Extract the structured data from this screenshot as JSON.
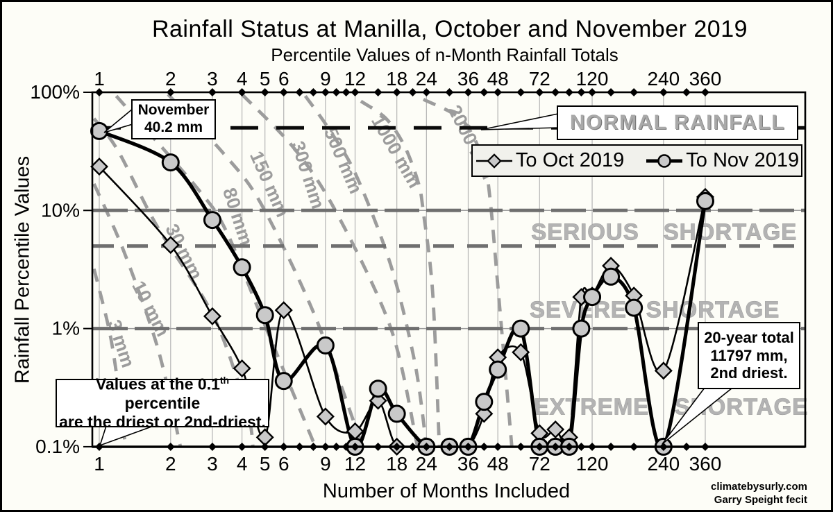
{
  "title": "Rainfall Status at Manilla, October and November 2019",
  "subtitle": "Percentile Values of n-Month Rainfall Totals",
  "x_axis_label": "Number of Months Included",
  "y_axis_label": "Rainfall Percentile Values",
  "credits": {
    "site": "climatebysurly.com",
    "author": "Garry Speight fecit"
  },
  "legend": {
    "items": [
      {
        "label": "To Oct 2019",
        "marker": "diamond"
      },
      {
        "label": "To Nov 2019",
        "marker": "circle"
      }
    ]
  },
  "callouts": {
    "november": {
      "line1": "November",
      "line2": "40.2 mm"
    },
    "normal": {
      "label": "NORMAL RAINFALL"
    },
    "values_note": {
      "prefix": "Values at the 0.1",
      "sup": "th",
      "suffix": " percentile",
      "line2": "are the driest or 2nd-driest."
    },
    "twenty_year": {
      "line1": "20-year total",
      "line2": "11797 mm,",
      "line3": "2nd driest."
    }
  },
  "zones": [
    {
      "id": "serious",
      "words": [
        "SERIOUS",
        "SHORTAGE"
      ]
    },
    {
      "id": "severe",
      "words": [
        "SEVERE",
        "SHORTAGE"
      ]
    },
    {
      "id": "extreme",
      "words": [
        "EXTREME",
        "SHORTAGE"
      ]
    }
  ],
  "colors": {
    "background": "#fdfdf7",
    "series": "#000000",
    "marker_fill": "#c9c9c9",
    "isohyet": "#9c9c9c",
    "zone_text": "#b3b3b3",
    "grid": "#b4b4b4",
    "reference_gray": "#6f6f6f"
  },
  "chart_data": {
    "type": "line",
    "title": "Rainfall Status at Manilla, October and November 2019",
    "xlabel": "Number of Months Included",
    "ylabel": "Rainfall Percentile Values",
    "x_scale": "log",
    "y_scale": "log",
    "xlim": [
      1,
      360
    ],
    "ylim": [
      0.1,
      100
    ],
    "x_tick_labels": [
      1,
      2,
      3,
      4,
      5,
      6,
      9,
      12,
      18,
      24,
      36,
      48,
      72,
      120,
      240,
      360
    ],
    "x_minor_ticks": [
      1,
      2,
      3,
      4,
      5,
      6,
      7,
      8,
      9,
      10,
      11,
      12,
      15,
      18,
      21,
      24,
      30,
      36,
      42,
      48,
      60,
      72,
      84,
      96,
      108,
      120,
      144,
      180,
      240,
      300,
      360
    ],
    "y_ticks": [
      {
        "label": "100%",
        "value": 100
      },
      {
        "label": "10%",
        "value": 10
      },
      {
        "label": "1%",
        "value": 1
      },
      {
        "label": "0.1%",
        "value": 0.1
      }
    ],
    "x": [
      1,
      2,
      3,
      4,
      5,
      6,
      9,
      12,
      15,
      18,
      24,
      30,
      36,
      42,
      48,
      60,
      72,
      84,
      96,
      108,
      120,
      144,
      180,
      240,
      360
    ],
    "series": [
      {
        "name": "To Oct 2019",
        "marker": "diamond",
        "values": [
          23.5,
          5.1,
          1.27,
          0.46,
          0.12,
          1.43,
          0.18,
          0.135,
          0.245,
          0.1,
          0.1,
          0.1,
          0.1,
          0.19,
          0.57,
          0.63,
          0.13,
          0.14,
          0.12,
          1.85,
          1.9,
          3.4,
          1.9,
          0.44,
          13
        ]
      },
      {
        "name": "To Nov 2019",
        "marker": "circle",
        "values": [
          47,
          25.5,
          8.3,
          3.3,
          1.3,
          0.36,
          0.72,
          0.1,
          0.31,
          0.19,
          0.1,
          0.1,
          0.1,
          0.24,
          0.45,
          1.0,
          0.1,
          0.1,
          0.1,
          1.0,
          1.85,
          2.75,
          1.5,
          0.1,
          12
        ]
      }
    ],
    "reference_lines": [
      {
        "percentile": 50,
        "style": "normal",
        "label": "NORMAL RAINFALL"
      },
      {
        "percentile": 10,
        "style": "major"
      },
      {
        "percentile": 5,
        "style": "dash"
      },
      {
        "percentile": 1,
        "style": "major"
      }
    ],
    "isohyets": [
      {
        "label": "3 mm",
        "points": [
          [
            0.95,
            3.2
          ],
          [
            1.11,
            0.9
          ],
          [
            1.22,
            0.26
          ],
          [
            1.29,
            0.1
          ]
        ]
      },
      {
        "label": "10 mm",
        "points": [
          [
            0.95,
            16.8
          ],
          [
            1.27,
            4.5
          ],
          [
            1.77,
            0.67
          ],
          [
            2.2,
            0.1
          ]
        ]
      },
      {
        "label": "30 mm",
        "points": [
          [
            0.95,
            60
          ],
          [
            1.2,
            32
          ],
          [
            1.75,
            7.4
          ],
          [
            3.04,
            1.26
          ],
          [
            4.2,
            0.2
          ],
          [
            4.45,
            0.1
          ]
        ]
      },
      {
        "label": "80 mm",
        "points": [
          [
            1.18,
            93
          ],
          [
            2.62,
            15
          ],
          [
            3.43,
            6.7
          ],
          [
            4.8,
            1.3
          ],
          [
            8.0,
            0.11
          ]
        ]
      },
      {
        "label": "150 mm",
        "points": [
          [
            1.95,
            96
          ],
          [
            3.36,
            30
          ],
          [
            4.8,
            11.5
          ],
          [
            8.1,
            1.3
          ],
          [
            12.9,
            0.1
          ]
        ]
      },
      {
        "label": "300 mm",
        "points": [
          [
            4.0,
            96
          ],
          [
            6.6,
            34
          ],
          [
            9.9,
            10
          ],
          [
            17,
            1.0
          ],
          [
            22,
            0.1
          ]
        ]
      },
      {
        "label": "500 mm",
        "points": [
          [
            7.4,
            93
          ],
          [
            9.3,
            49
          ],
          [
            12.1,
            20
          ],
          [
            17,
            3.4
          ],
          [
            21.5,
            0.5
          ],
          [
            24,
            0.1
          ]
        ]
      },
      {
        "label": "1000 mm",
        "points": [
          [
            12.7,
            84
          ],
          [
            16.2,
            60
          ],
          [
            19.4,
            35
          ],
          [
            22.2,
            17
          ],
          [
            23.3,
            9.6
          ],
          [
            25.5,
            2.0
          ],
          [
            27.2,
            0.1
          ]
        ]
      },
      {
        "label": "2000 mm",
        "points": [
          [
            23.3,
            87
          ],
          [
            34,
            58
          ],
          [
            41.6,
            27
          ],
          [
            44.5,
            12.6
          ],
          [
            48.3,
            2.0
          ],
          [
            55,
            0.1
          ]
        ]
      }
    ]
  }
}
